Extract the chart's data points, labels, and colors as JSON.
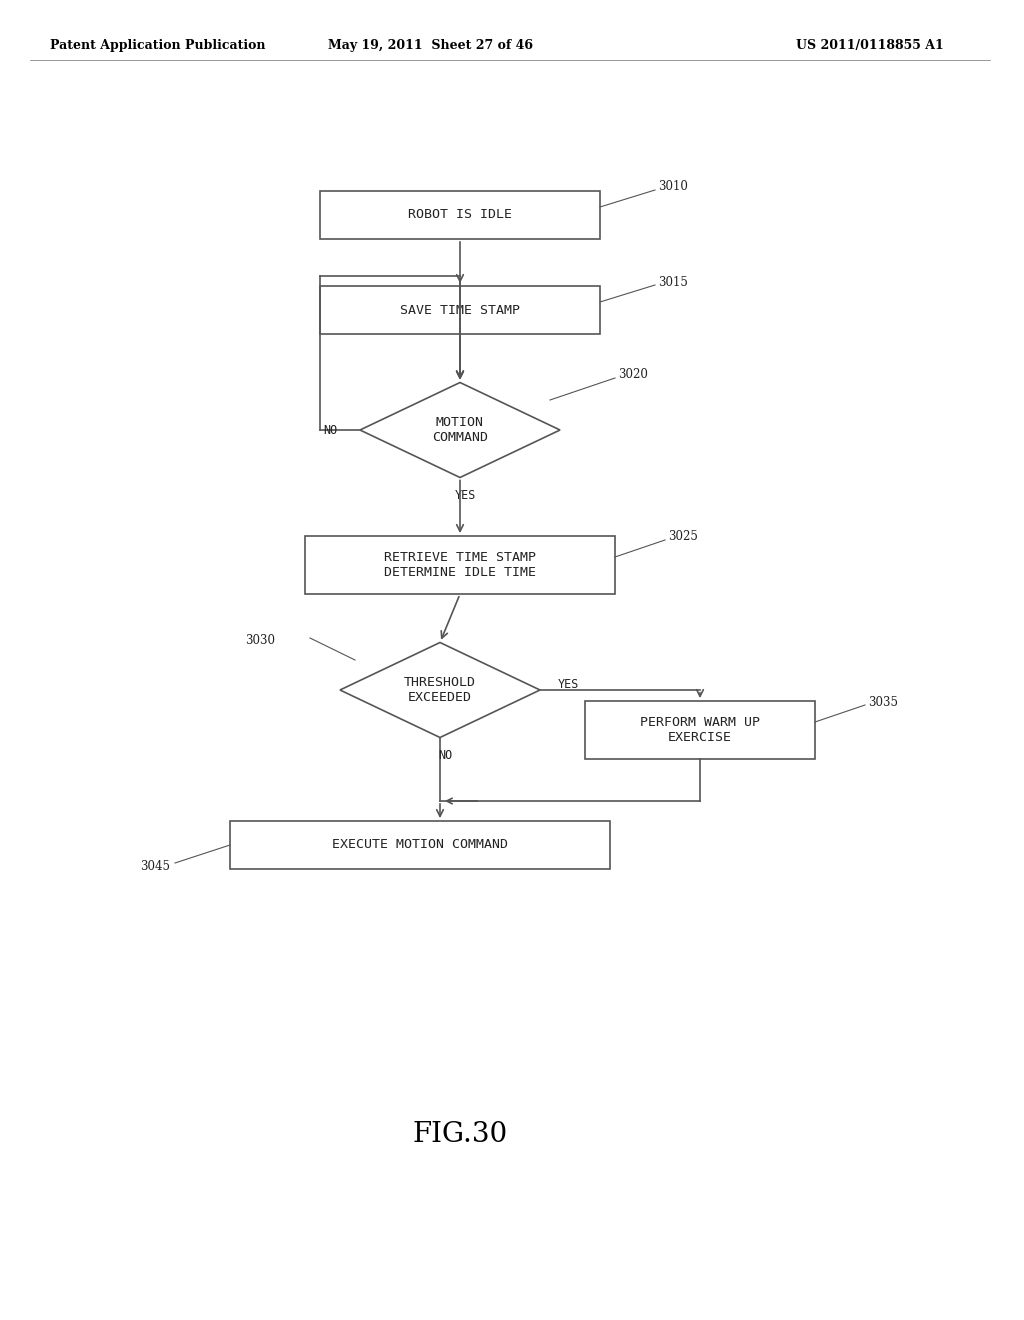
{
  "bg_color": "#ffffff",
  "header_left": "Patent Application Publication",
  "header_mid": "May 19, 2011  Sheet 27 of 46",
  "header_right": "US 2011/0118855 A1",
  "figure_label": "FIG.30",
  "line_color": "#555555",
  "text_color": "#222222",
  "box_edge_color": "#555555",
  "font_size_box": 9.5,
  "font_size_header": 9,
  "font_size_tag": 8.5,
  "font_size_label": 20
}
